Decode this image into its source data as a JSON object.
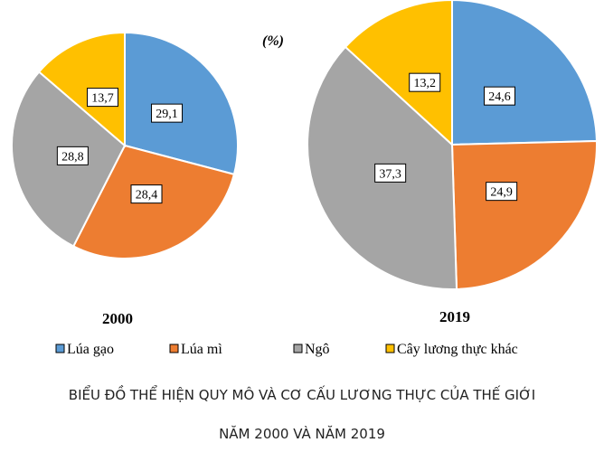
{
  "chart_data": {
    "type": "pie",
    "unit": "(%)",
    "title_lines": [
      "BIỂU ĐỒ THỂ HIỆN QUY MÔ VÀ CƠ CẤU LƯƠNG THỰC CỦA THẾ GIỚI",
      "NĂM 2000 VÀ NĂM 2019"
    ],
    "categories": [
      "Lúa gạo",
      "Lúa mì",
      "Ngô",
      "Cây lương thực khác"
    ],
    "colors": [
      "#5B9BD5",
      "#ED7D31",
      "#A5A5A5",
      "#FFC000"
    ],
    "legend_position": "bottom",
    "pies": [
      {
        "label": "2000",
        "values": [
          29.1,
          28.4,
          28.8,
          13.7
        ],
        "value_labels": [
          "29,1",
          "28,4",
          "28,8",
          "13,7"
        ]
      },
      {
        "label": "2019",
        "values": [
          24.6,
          24.9,
          37.3,
          13.2
        ],
        "value_labels": [
          "24,6",
          "24,9",
          "37,3",
          "13,2"
        ]
      }
    ]
  }
}
